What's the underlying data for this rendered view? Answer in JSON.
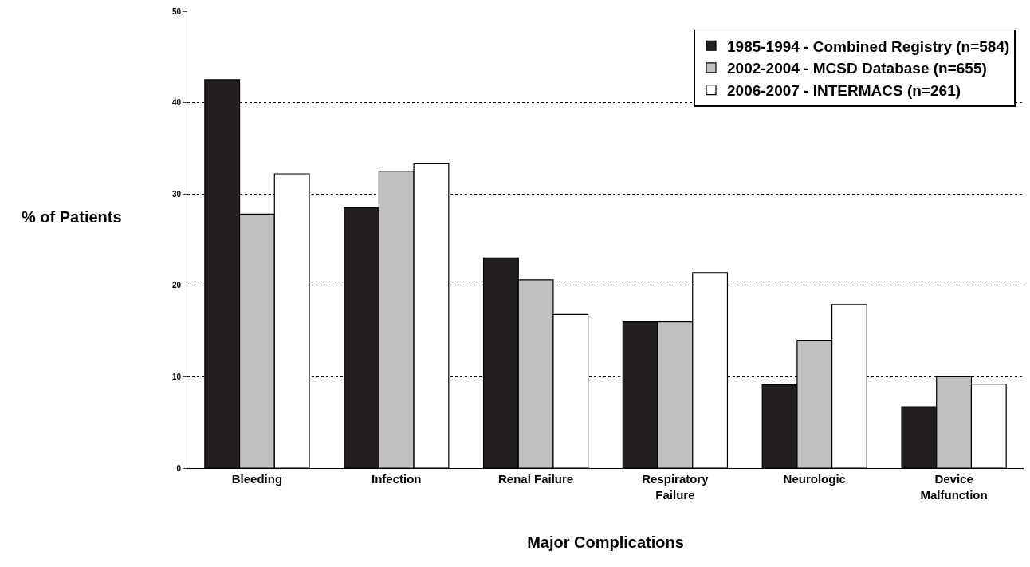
{
  "chart_data": {
    "type": "bar",
    "xlabel": "Major Complications",
    "ylabel": "% of Patients",
    "categories": [
      "Bleeding",
      "Infection",
      "Renal Failure",
      "Respiratory\nFailure",
      "Neurologic",
      "Device\nMalfunction"
    ],
    "series": [
      {
        "name": "1985-1994 - Combined Registry (n=584)",
        "color": "#231f20",
        "values": [
          42.5,
          28.5,
          23.0,
          16.0,
          9.1,
          6.7
        ]
      },
      {
        "name": "2002-2004 - MCSD Database (n=655)",
        "color": "#c0c0c0",
        "values": [
          27.8,
          32.5,
          20.6,
          16.0,
          14.0,
          10.0
        ]
      },
      {
        "name": "2006-2007 - INTERMACS (n=261)",
        "color": "#ffffff",
        "values": [
          32.2,
          33.3,
          16.8,
          21.4,
          17.9,
          9.2
        ]
      }
    ],
    "ylim": [
      0,
      50
    ],
    "yticks": [
      0,
      10,
      20,
      30,
      40,
      50
    ],
    "grid": "y",
    "legend": "top right"
  }
}
